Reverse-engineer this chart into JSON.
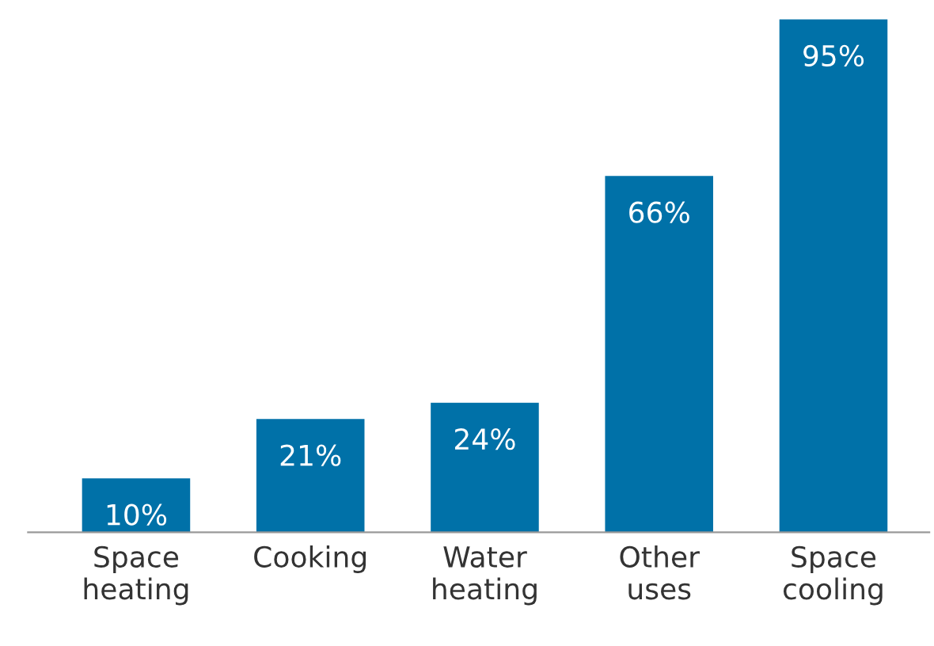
{
  "chart_data": {
    "type": "bar",
    "categories": [
      "Space\nheating",
      "Cooking",
      "Water\nheating",
      "Other\nuses",
      "Space\ncooling"
    ],
    "values": [
      10,
      21,
      24,
      66,
      95
    ],
    "color": "#0071a8",
    "data_labels": true,
    "value_labels": [
      "10%",
      "21%",
      "24%",
      "66%",
      "95%"
    ],
    "grid": false,
    "legend": false
  }
}
